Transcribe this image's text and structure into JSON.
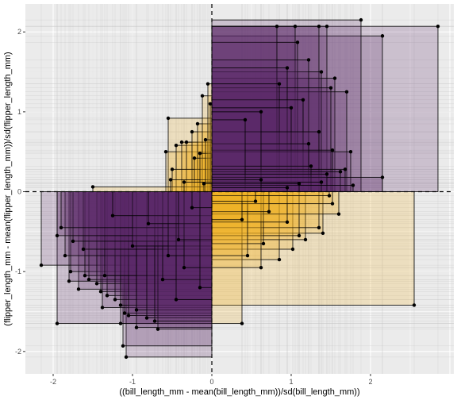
{
  "chart_data": {
    "type": "scatter",
    "title": "",
    "xlabel": "((bill_length_mm - mean(bill_length_mm))/sd(bill_length_mm))",
    "ylabel": "(flipper_length_mm - mean(flipper_length_mm))/sd(flipper_length_mm)",
    "xlim": [
      -2.35,
      3.05
    ],
    "ylim": [
      -2.28,
      2.35
    ],
    "x_ticks": [
      -2,
      -1,
      0,
      1,
      2
    ],
    "y_ticks": [
      -2,
      -1,
      0,
      1,
      2
    ],
    "x_tick_labels": [
      "-2",
      "-1",
      "0",
      "1",
      "2"
    ],
    "y_tick_labels": [
      "-2",
      "-1",
      "0",
      "1",
      "2"
    ],
    "reference_lines": {
      "x": 0,
      "y": 0,
      "style": "dashed"
    },
    "grid": true,
    "legend": "none",
    "colors": {
      "panel_background": "#ebebeb",
      "grid": "#ffffff",
      "positive_product": "#5b2a6b",
      "negative_product": "#f0b323",
      "point": "#000000",
      "reference_line": "#000000"
    },
    "series": [
      {
        "name": "",
        "points": [
          {
            "x": 2.85,
            "y": 2.07
          },
          {
            "x": 1.88,
            "y": 2.15
          },
          {
            "x": 2.15,
            "y": 1.95
          },
          {
            "x": 1.45,
            "y": 2.07
          },
          {
            "x": 1.35,
            "y": 2.07
          },
          {
            "x": 1.05,
            "y": 2.07
          },
          {
            "x": 0.82,
            "y": 2.07
          },
          {
            "x": 1.08,
            "y": 1.87
          },
          {
            "x": 1.22,
            "y": 1.65
          },
          {
            "x": 0.95,
            "y": 1.55
          },
          {
            "x": 1.38,
            "y": 1.5
          },
          {
            "x": 1.55,
            "y": 1.42
          },
          {
            "x": 0.85,
            "y": 1.35
          },
          {
            "x": 1.5,
            "y": 1.3
          },
          {
            "x": 1.7,
            "y": 1.25
          },
          {
            "x": 1.15,
            "y": 1.15
          },
          {
            "x": 1.0,
            "y": 1.05
          },
          {
            "x": 0.62,
            "y": 1.0
          },
          {
            "x": 0.42,
            "y": 0.9
          },
          {
            "x": 1.35,
            "y": 0.75
          },
          {
            "x": 1.22,
            "y": 0.6
          },
          {
            "x": 1.52,
            "y": 0.52
          },
          {
            "x": 1.75,
            "y": 0.5
          },
          {
            "x": 1.68,
            "y": 0.28
          },
          {
            "x": 1.62,
            "y": 0.25
          },
          {
            "x": 1.45,
            "y": 0.22
          },
          {
            "x": 1.38,
            "y": 0.12
          },
          {
            "x": 2.15,
            "y": 0.18
          },
          {
            "x": 1.1,
            "y": 0.1
          },
          {
            "x": 1.78,
            "y": 0.08
          },
          {
            "x": 0.95,
            "y": 0.05
          },
          {
            "x": 0.62,
            "y": 0.15
          },
          {
            "x": 1.25,
            "y": 0.32
          },
          {
            "x": -0.05,
            "y": 1.35
          },
          {
            "x": -0.12,
            "y": 1.2
          },
          {
            "x": -0.02,
            "y": 1.1
          },
          {
            "x": -0.55,
            "y": 0.92
          },
          {
            "x": -0.18,
            "y": 0.85
          },
          {
            "x": -0.25,
            "y": 0.75
          },
          {
            "x": -0.08,
            "y": 0.65
          },
          {
            "x": -0.32,
            "y": 0.62
          },
          {
            "x": -0.38,
            "y": 0.62
          },
          {
            "x": -0.45,
            "y": 0.58
          },
          {
            "x": -0.58,
            "y": 0.5
          },
          {
            "x": -0.15,
            "y": 0.48
          },
          {
            "x": -0.22,
            "y": 0.42
          },
          {
            "x": -0.5,
            "y": 0.28
          },
          {
            "x": -0.52,
            "y": 0.15
          },
          {
            "x": -0.35,
            "y": 0.12
          },
          {
            "x": -0.1,
            "y": 0.1
          },
          {
            "x": -1.5,
            "y": 0.06
          },
          {
            "x": 1.48,
            "y": -0.05
          },
          {
            "x": 1.52,
            "y": -0.15
          },
          {
            "x": 1.6,
            "y": -0.28
          },
          {
            "x": 1.35,
            "y": -0.45
          },
          {
            "x": 1.4,
            "y": -0.52
          },
          {
            "x": 1.1,
            "y": -0.55
          },
          {
            "x": 1.18,
            "y": -0.6
          },
          {
            "x": 0.65,
            "y": -0.65
          },
          {
            "x": 1.02,
            "y": -0.72
          },
          {
            "x": 0.85,
            "y": -0.85
          },
          {
            "x": 0.45,
            "y": -0.8
          },
          {
            "x": 0.62,
            "y": -0.95
          },
          {
            "x": 0.38,
            "y": -0.35
          },
          {
            "x": 0.72,
            "y": -0.25
          },
          {
            "x": 0.55,
            "y": -0.12
          },
          {
            "x": 0.95,
            "y": -0.38
          },
          {
            "x": 2.55,
            "y": -1.42
          },
          {
            "x": 0.38,
            "y": -1.65
          },
          {
            "x": -1.9,
            "y": -0.45
          },
          {
            "x": -1.95,
            "y": -0.55
          },
          {
            "x": -1.75,
            "y": -0.62
          },
          {
            "x": -1.85,
            "y": -0.8
          },
          {
            "x": -1.62,
            "y": -0.72
          },
          {
            "x": -2.15,
            "y": -0.92
          },
          {
            "x": -1.78,
            "y": -1.0
          },
          {
            "x": -1.6,
            "y": -1.05
          },
          {
            "x": -1.55,
            "y": -1.1
          },
          {
            "x": -1.35,
            "y": -1.05
          },
          {
            "x": -1.45,
            "y": -1.15
          },
          {
            "x": -1.8,
            "y": -1.12
          },
          {
            "x": -1.68,
            "y": -1.22
          },
          {
            "x": -1.4,
            "y": -1.25
          },
          {
            "x": -1.32,
            "y": -1.3
          },
          {
            "x": -1.22,
            "y": -1.35
          },
          {
            "x": -1.38,
            "y": -1.45
          },
          {
            "x": -1.15,
            "y": -1.42
          },
          {
            "x": -1.1,
            "y": -1.52
          },
          {
            "x": -0.95,
            "y": -1.48
          },
          {
            "x": -1.05,
            "y": -1.55
          },
          {
            "x": -0.82,
            "y": -1.58
          },
          {
            "x": -0.72,
            "y": -1.62
          },
          {
            "x": -0.68,
            "y": -1.72
          },
          {
            "x": -1.15,
            "y": -1.65
          },
          {
            "x": -0.95,
            "y": -1.7
          },
          {
            "x": -1.95,
            "y": -1.65
          },
          {
            "x": -1.12,
            "y": -1.93
          },
          {
            "x": -1.08,
            "y": -2.07
          },
          {
            "x": -0.55,
            "y": -0.8
          },
          {
            "x": -0.42,
            "y": -0.6
          },
          {
            "x": -0.35,
            "y": -0.95
          },
          {
            "x": -0.62,
            "y": -1.1
          },
          {
            "x": -1.0,
            "y": -0.68
          },
          {
            "x": -0.8,
            "y": -0.4
          },
          {
            "x": -0.25,
            "y": -0.2
          },
          {
            "x": -1.25,
            "y": -0.3
          },
          {
            "x": -0.45,
            "y": -1.35
          },
          {
            "x": -0.15,
            "y": -1.2
          }
        ]
      }
    ]
  }
}
